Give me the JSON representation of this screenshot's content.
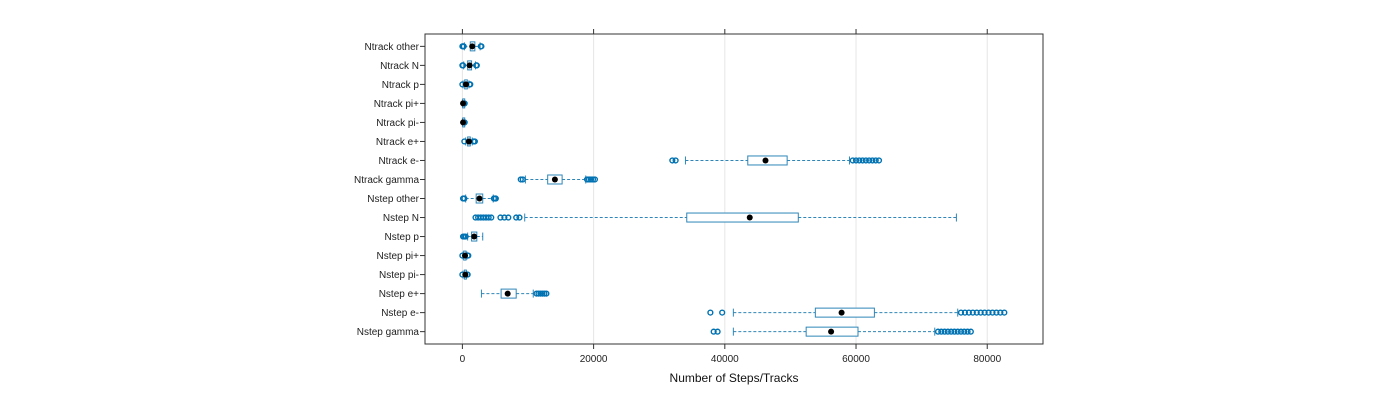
{
  "chart_data": {
    "type": "boxplot",
    "title": "",
    "xlabel": "Number of Steps/Tracks",
    "ylabel": "",
    "xlim": [
      -5700,
      88500
    ],
    "xticks": [
      0,
      20000,
      40000,
      60000,
      80000
    ],
    "xtick_labels": [
      "0",
      "20000",
      "40000",
      "60000",
      "80000"
    ],
    "grid": true,
    "colors": {
      "box": "#2e86b8",
      "whisker": "#2e86b8",
      "median": "#000000",
      "outlier": "#0072b2",
      "grid": "#e6e6e6",
      "frame": "#333333"
    },
    "categories": [
      {
        "label": "Ntrack other",
        "q1": 1200,
        "median": 1500,
        "q3": 1900,
        "wlo": 300,
        "whi": 2700,
        "outliers": [
          0,
          100,
          200,
          2800,
          2900
        ]
      },
      {
        "label": "Ntrack N",
        "q1": 800,
        "median": 1100,
        "q3": 1400,
        "wlo": 200,
        "whi": 2000,
        "outliers": [
          0,
          100,
          2100,
          2200
        ]
      },
      {
        "label": "Ntrack p",
        "q1": 350,
        "median": 550,
        "q3": 750,
        "wlo": 100,
        "whi": 1000,
        "outliers": [
          0,
          1100,
          1200
        ]
      },
      {
        "label": "Ntrack pi+",
        "q1": 50,
        "median": 100,
        "q3": 150,
        "wlo": 0,
        "whi": 250,
        "outliers": [
          300,
          350
        ]
      },
      {
        "label": "Ntrack pi-",
        "q1": 50,
        "median": 100,
        "q3": 150,
        "wlo": 0,
        "whi": 250,
        "outliers": [
          300,
          350
        ]
      },
      {
        "label": "Ntrack e+",
        "q1": 800,
        "median": 1000,
        "q3": 1200,
        "wlo": 500,
        "whi": 1500,
        "outliers": [
          300,
          1700,
          1800,
          1900
        ]
      },
      {
        "label": "Ntrack e-",
        "q1": 43500,
        "median": 46200,
        "q3": 49500,
        "wlo": 34000,
        "whi": 59000,
        "outliers": [
          32000,
          32500,
          59500,
          60000,
          60500,
          61000,
          61500,
          62000,
          62500,
          63000,
          63500
        ]
      },
      {
        "label": "Ntrack gamma",
        "q1": 13000,
        "median": 14100,
        "q3": 15200,
        "wlo": 9600,
        "whi": 18800,
        "outliers": [
          8900,
          9200,
          19000,
          19300,
          19600,
          19900,
          20200
        ]
      },
      {
        "label": "Nstep other",
        "q1": 2100,
        "median": 2600,
        "q3": 3100,
        "wlo": 500,
        "whi": 4700,
        "outliers": [
          100,
          300,
          4800,
          5000,
          5100
        ]
      },
      {
        "label": "Nstep N",
        "q1": 34200,
        "median": 43800,
        "q3": 51200,
        "wlo": 9500,
        "whi": 75300,
        "outliers": [
          2000,
          2400,
          2800,
          3200,
          3600,
          4000,
          4400,
          5800,
          6400,
          7000,
          8200,
          8700
        ]
      },
      {
        "label": "Nstep p",
        "q1": 1400,
        "median": 1800,
        "q3": 2200,
        "wlo": 800,
        "whi": 3100,
        "outliers": [
          100,
          300,
          500
        ]
      },
      {
        "label": "Nstep pi+",
        "q1": 200,
        "median": 400,
        "q3": 550,
        "wlo": 100,
        "whi": 700,
        "outliers": [
          0,
          800,
          900
        ]
      },
      {
        "label": "Nstep pi-",
        "q1": 300,
        "median": 450,
        "q3": 550,
        "wlo": 100,
        "whi": 650,
        "outliers": [
          0,
          750,
          800
        ]
      },
      {
        "label": "Nstep e+",
        "q1": 5900,
        "median": 6900,
        "q3": 8200,
        "wlo": 2900,
        "whi": 10800,
        "outliers": [
          11300,
          11600,
          11900,
          12200,
          12500,
          12800
        ]
      },
      {
        "label": "Nstep e-",
        "q1": 53800,
        "median": 57800,
        "q3": 62800,
        "wlo": 41300,
        "whi": 75500,
        "outliers": [
          37800,
          39600,
          76000,
          76600,
          77200,
          77800,
          78400,
          79000,
          79600,
          80200,
          80800,
          81400,
          82000,
          82600
        ]
      },
      {
        "label": "Nstep gamma",
        "q1": 52400,
        "median": 56200,
        "q3": 60300,
        "wlo": 41300,
        "whi": 72000,
        "outliers": [
          38300,
          38900,
          72500,
          73000,
          73500,
          74000,
          74500,
          75000,
          75500,
          76000,
          76500,
          77000,
          77500
        ]
      }
    ]
  }
}
